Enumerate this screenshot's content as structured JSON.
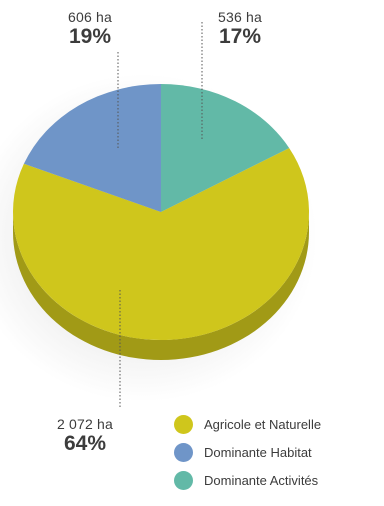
{
  "chart_data": {
    "type": "pie",
    "title": "",
    "slices": [
      {
        "name": "Agricole et Naturelle",
        "value": 2072,
        "value_label": "2 072 ha",
        "percent_label": "64%",
        "color": "#cfc61c"
      },
      {
        "name": "Dominante Habitat",
        "value": 606,
        "value_label": "606 ha",
        "percent_label": "19%",
        "color": "#6f95c8"
      },
      {
        "name": "Dominante Activités",
        "value": 536,
        "value_label": "536 ha",
        "percent_label": "17%",
        "color": "#62b9a7"
      }
    ],
    "legend_position": "bottom-right",
    "style": "3d"
  }
}
